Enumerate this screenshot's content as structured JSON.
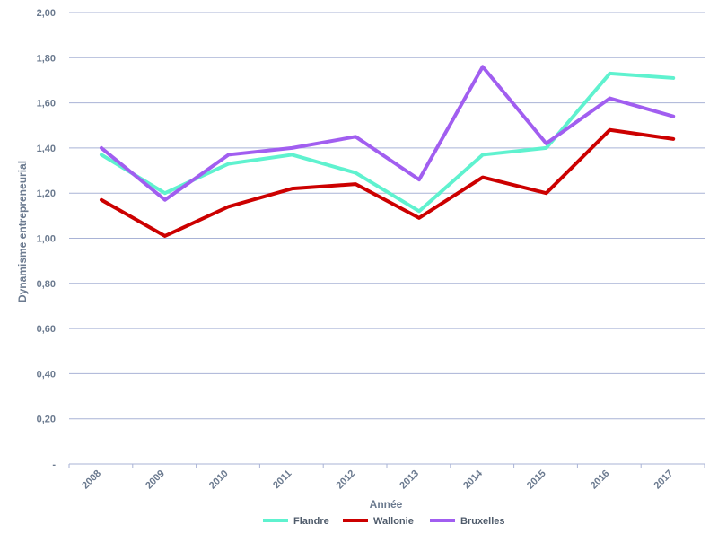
{
  "chart_data": {
    "type": "line",
    "xlabel": "Année",
    "ylabel": "Dynamisme entrepreneurial",
    "ylim": [
      0,
      2.0
    ],
    "ytick_values": [
      0,
      0.2,
      0.4,
      0.6,
      0.8,
      1.0,
      1.2,
      1.4,
      1.6,
      1.8,
      2.0
    ],
    "ytick_labels": [
      "-",
      "0,20",
      "0,40",
      "0,60",
      "0,80",
      "1,00",
      "1,20",
      "1,40",
      "1,60",
      "1,80",
      "2,00"
    ],
    "categories": [
      "2008",
      "2009",
      "2010",
      "2011",
      "2012",
      "2013",
      "2014",
      "2015",
      "2016",
      "2017"
    ],
    "grid": "horizontal",
    "legend_position": "bottom",
    "series": [
      {
        "name": "Flandre",
        "color": "#5ff2cf",
        "values": [
          1.37,
          1.2,
          1.33,
          1.37,
          1.29,
          1.12,
          1.37,
          1.4,
          1.73,
          1.71
        ]
      },
      {
        "name": "Wallonie",
        "color": "#cc0000",
        "values": [
          1.17,
          1.01,
          1.14,
          1.22,
          1.24,
          1.09,
          1.27,
          1.2,
          1.48,
          1.44
        ]
      },
      {
        "name": "Bruxelles",
        "color": "#a15ef0",
        "values": [
          1.4,
          1.17,
          1.37,
          1.4,
          1.45,
          1.26,
          1.76,
          1.42,
          1.62,
          1.54
        ]
      }
    ]
  }
}
